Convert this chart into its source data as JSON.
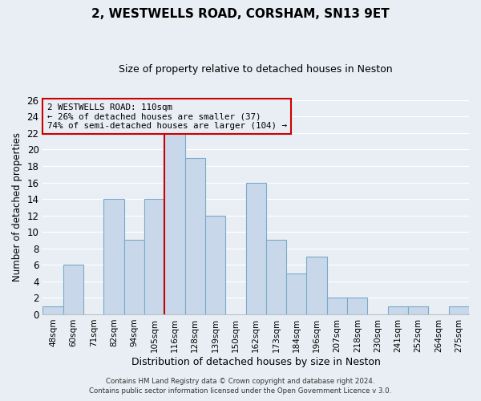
{
  "title": "2, WESTWELLS ROAD, CORSHAM, SN13 9ET",
  "subtitle": "Size of property relative to detached houses in Neston",
  "xlabel": "Distribution of detached houses by size in Neston",
  "ylabel": "Number of detached properties",
  "bar_color": "#c8d8ea",
  "bar_edge_color": "#7aaac8",
  "categories": [
    "48sqm",
    "60sqm",
    "71sqm",
    "82sqm",
    "94sqm",
    "105sqm",
    "116sqm",
    "128sqm",
    "139sqm",
    "150sqm",
    "162sqm",
    "173sqm",
    "184sqm",
    "196sqm",
    "207sqm",
    "218sqm",
    "230sqm",
    "241sqm",
    "252sqm",
    "264sqm",
    "275sqm"
  ],
  "values": [
    1,
    6,
    0,
    14,
    9,
    14,
    22,
    19,
    12,
    0,
    16,
    9,
    5,
    7,
    2,
    2,
    0,
    1,
    1,
    0,
    1
  ],
  "vline_x": 5.5,
  "vline_color": "#cc0000",
  "ylim": [
    0,
    26
  ],
  "yticks": [
    0,
    2,
    4,
    6,
    8,
    10,
    12,
    14,
    16,
    18,
    20,
    22,
    24,
    26
  ],
  "annotation_title": "2 WESTWELLS ROAD: 110sqm",
  "annotation_line1": "← 26% of detached houses are smaller (37)",
  "annotation_line2": "74% of semi-detached houses are larger (104) →",
  "annotation_box_color": "#cc0000",
  "footer1": "Contains HM Land Registry data © Crown copyright and database right 2024.",
  "footer2": "Contains public sector information licensed under the Open Government Licence v 3.0.",
  "bg_color": "#e8eef4",
  "grid_color": "#d0dce8",
  "title_fontsize": 11,
  "subtitle_fontsize": 9
}
